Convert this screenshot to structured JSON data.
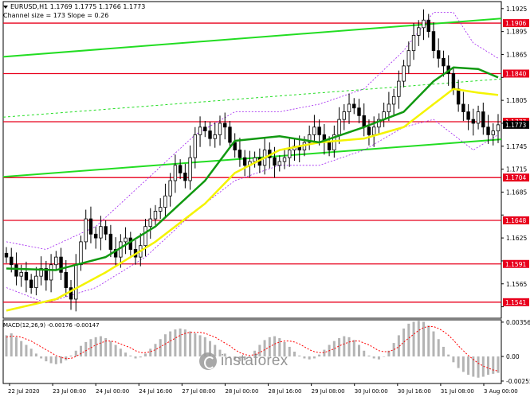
{
  "header": {
    "symbol_line": "EURUSD,H1  1.1769 1.1775 1.1766 1.1773",
    "channel_line": "Channel size = 173 Slope = 0.26"
  },
  "macd": {
    "label": "MACD(12,26,9) -0.00176 -0.00147"
  },
  "logo": {
    "text": "instaforex",
    "icon": "instaforex-logo-icon"
  },
  "colors": {
    "candle": "#000000",
    "level_line": "#e8001c",
    "level_label_bg": "#e8001c",
    "channel": "#22dd22",
    "ma_green": "#119911",
    "ma_yellow": "#f4f400",
    "envelope": "#a020f0",
    "macd_hist": "#b4b4b4",
    "macd_signal": "#ff0000"
  },
  "chart_data": {
    "type": "candlestick",
    "symbol": "EURUSD",
    "timeframe": "H1",
    "ylim": [
      1.152,
      1.193
    ],
    "y_ticks": [
      "1.1925",
      "1.1895",
      "1.1865",
      "1.1835",
      "1.1805",
      "1.1775",
      "1.1745",
      "1.1715",
      "1.1685",
      "1.1655",
      "1.1625",
      "1.1595",
      "1.1565",
      "1.1535"
    ],
    "levels": [
      "1.1906",
      "1.1840",
      "1.1777",
      "1.1704",
      "1.1648",
      "1.1591",
      "1.1541"
    ],
    "current_price": "1.1773",
    "x_tick_labels": [
      "22 Jul 2020",
      "23 Jul 08:00",
      "24 Jul 00:00",
      "24 Jul 16:00",
      "27 Jul 08:00",
      "28 Jul 00:00",
      "28 Jul 16:00",
      "29 Jul 08:00",
      "30 Jul 00:00",
      "30 Jul 16:00",
      "31 Jul 08:00",
      "3 Aug 00:00"
    ],
    "closes": [
      1.16,
      1.159,
      1.1575,
      1.158,
      1.157,
      1.156,
      1.1575,
      1.1585,
      1.157,
      1.159,
      1.16,
      1.158,
      1.156,
      1.1545,
      1.159,
      1.162,
      1.165,
      1.163,
      1.1625,
      1.164,
      1.163,
      1.161,
      1.16,
      1.162,
      1.1625,
      1.161,
      1.16,
      1.1615,
      1.164,
      1.165,
      1.166,
      1.1665,
      1.168,
      1.17,
      1.172,
      1.171,
      1.17,
      1.173,
      1.176,
      1.177,
      1.1765,
      1.1755,
      1.176,
      1.1775,
      1.177,
      1.175,
      1.174,
      1.173,
      1.172,
      1.1725,
      1.173,
      1.172,
      1.174,
      1.173,
      1.172,
      1.1725,
      1.173,
      1.174,
      1.1745,
      1.174,
      1.175,
      1.176,
      1.177,
      1.176,
      1.175,
      1.174,
      1.176,
      1.178,
      1.179,
      1.18,
      1.1795,
      1.1785,
      1.177,
      1.176,
      1.177,
      1.178,
      1.179,
      1.18,
      1.181,
      1.183,
      1.185,
      1.187,
      1.189,
      1.19,
      1.191,
      1.1895,
      1.187,
      1.186,
      1.185,
      1.184,
      1.182,
      1.18,
      1.179,
      1.178,
      1.1775,
      1.179,
      1.177,
      1.176,
      1.1765,
      1.1773
    ],
    "ma_green": {
      "x": [
        0,
        10,
        20,
        30,
        40,
        46,
        55,
        63,
        72,
        80,
        86,
        90,
        95,
        99
      ],
      "y": [
        1.1585,
        1.1583,
        1.16,
        1.164,
        1.17,
        1.1752,
        1.1758,
        1.175,
        1.177,
        1.179,
        1.183,
        1.1848,
        1.1846,
        1.1835
      ]
    },
    "ma_yellow": {
      "x": [
        0,
        10,
        20,
        30,
        40,
        46,
        55,
        63,
        72,
        80,
        86,
        90,
        95,
        99
      ],
      "y": [
        1.153,
        1.1545,
        1.158,
        1.162,
        1.167,
        1.171,
        1.174,
        1.175,
        1.1755,
        1.177,
        1.18,
        1.182,
        1.1815,
        1.1812
      ]
    },
    "env_upper": {
      "x": [
        0,
        8,
        18,
        28,
        38,
        46,
        55,
        63,
        72,
        80,
        86,
        90,
        94,
        99
      ],
      "y": [
        1.162,
        1.161,
        1.164,
        1.17,
        1.176,
        1.179,
        1.179,
        1.18,
        1.182,
        1.187,
        1.192,
        1.192,
        1.188,
        1.186
      ]
    },
    "env_lower": {
      "x": [
        0,
        8,
        18,
        28,
        38,
        46,
        55,
        63,
        72,
        80,
        86,
        90,
        94,
        99
      ],
      "y": [
        1.156,
        1.154,
        1.156,
        1.16,
        1.166,
        1.17,
        1.172,
        1.172,
        1.174,
        1.177,
        1.178,
        1.176,
        1.174,
        1.176
      ]
    },
    "channel_upper": {
      "x": [
        0,
        99
      ],
      "y": [
        1.1862,
        1.1912
      ]
    },
    "channel_mid": {
      "x": [
        0,
        99
      ],
      "y": [
        1.1783,
        1.1833
      ]
    },
    "channel_lower": {
      "x": [
        0,
        99
      ],
      "y": [
        1.1705,
        1.1754
      ]
    },
    "macd": {
      "ylim": [
        -0.0028,
        0.0038
      ],
      "y_ticks": [
        "0.00356",
        "0.00",
        "-0.00255"
      ],
      "hist": [
        0.0022,
        0.0024,
        0.002,
        0.0016,
        0.0012,
        0.0008,
        0.0003,
        -0.0002,
        -0.0005,
        -0.0007,
        -0.0008,
        -0.0007,
        -0.0004,
        0.0001,
        0.0006,
        0.0011,
        0.0015,
        0.0018,
        0.002,
        0.0021,
        0.0019,
        0.0016,
        0.0012,
        0.0008,
        0.0004,
        0.0001,
        -0.0002,
        -0.0001,
        0.0003,
        0.0008,
        0.0013,
        0.0018,
        0.0023,
        0.0026,
        0.0028,
        0.0029,
        0.0028,
        0.0026,
        0.0024,
        0.0022,
        0.002,
        0.0016,
        0.0012,
        0.0007,
        0.0003,
        0.0,
        -0.0003,
        -0.0005,
        -0.0004,
        0.0,
        0.0006,
        0.0012,
        0.0017,
        0.002,
        0.0021,
        0.0019,
        0.0015,
        0.001,
        0.0005,
        0.0001,
        -0.0002,
        -0.0003,
        -0.0002,
        0.0002,
        0.0007,
        0.0012,
        0.0016,
        0.0019,
        0.0021,
        0.002,
        0.0017,
        0.0012,
        0.0006,
        0.0001,
        -0.0002,
        -0.0003,
        0.0,
        0.0006,
        0.0014,
        0.0022,
        0.0029,
        0.0034,
        0.0036,
        0.0037,
        0.0036,
        0.0032,
        0.0026,
        0.0018,
        0.001,
        0.0002,
        -0.0006,
        -0.0012,
        -0.0016,
        -0.0019,
        -0.0021,
        -0.0022,
        -0.0021,
        -0.0019,
        -0.0018,
        -0.0017
      ],
      "signal": [
        0.002,
        0.0021,
        0.0021,
        0.002,
        0.0018,
        0.0016,
        0.0013,
        0.001,
        0.0007,
        0.0004,
        0.0001,
        -0.0001,
        -0.0002,
        -0.0002,
        0.0,
        0.0003,
        0.0006,
        0.0009,
        0.0012,
        0.0014,
        0.0016,
        0.0016,
        0.0015,
        0.0013,
        0.0011,
        0.0009,
        0.0006,
        0.0004,
        0.0004,
        0.0005,
        0.0007,
        0.001,
        0.0013,
        0.0016,
        0.0019,
        0.0022,
        0.0024,
        0.0025,
        0.0025,
        0.0025,
        0.0024,
        0.0022,
        0.002,
        0.0017,
        0.0014,
        0.0011,
        0.0007,
        0.0004,
        0.0002,
        0.0001,
        0.0002,
        0.0004,
        0.0007,
        0.001,
        0.0013,
        0.0015,
        0.0016,
        0.0016,
        0.0015,
        0.0013,
        0.001,
        0.0007,
        0.0005,
        0.0004,
        0.0004,
        0.0006,
        0.0008,
        0.0011,
        0.0013,
        0.0015,
        0.0016,
        0.0016,
        0.0014,
        0.0012,
        0.0009,
        0.0006,
        0.0005,
        0.0005,
        0.0007,
        0.001,
        0.0015,
        0.0019,
        0.0023,
        0.0027,
        0.003,
        0.0031,
        0.0031,
        0.0029,
        0.0026,
        0.0022,
        0.0017,
        0.0011,
        0.0006,
        0.0001,
        -0.0003,
        -0.0007,
        -0.001,
        -0.0012,
        -0.0014,
        -0.0015
      ]
    }
  }
}
